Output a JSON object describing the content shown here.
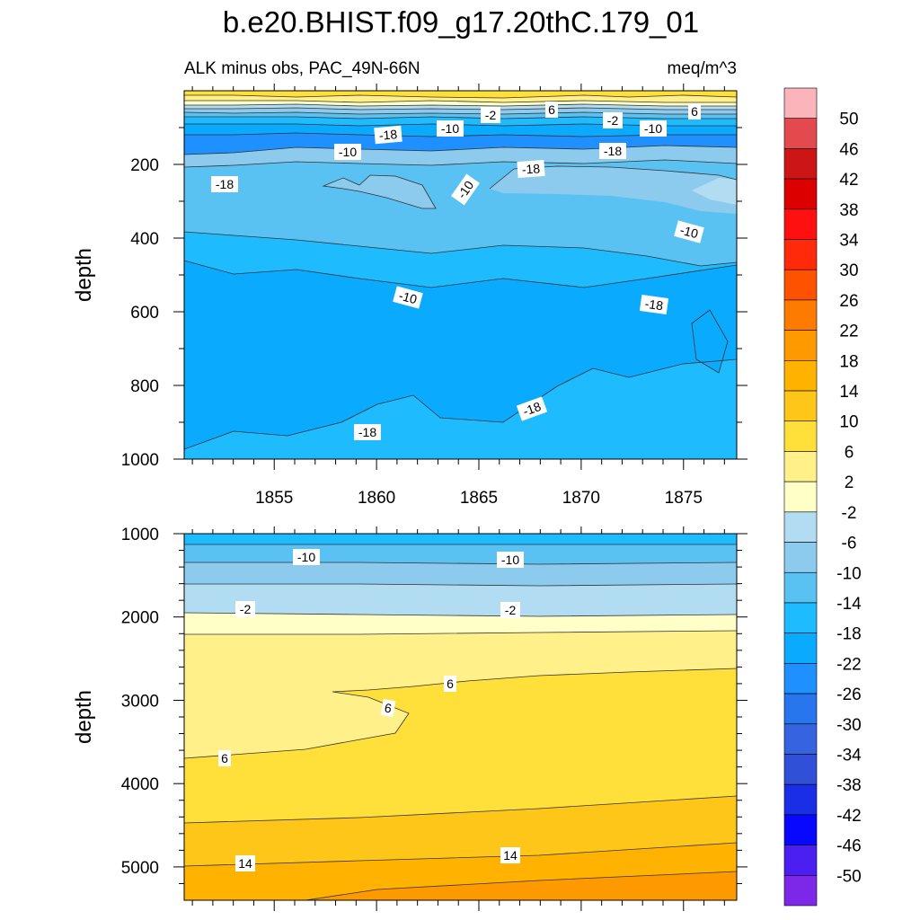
{
  "chart_data": {
    "type": "heatmap",
    "title": "b.e20.BHIST.f09_g17.20thC.179_01",
    "subtitle_left": "ALK minus obs, PAC_49N-66N",
    "subtitle_right": "meq/m^3",
    "ylabel": "depth",
    "colorbar": {
      "labels": [
        "50",
        "46",
        "42",
        "38",
        "34",
        "30",
        "26",
        "22",
        "18",
        "14",
        "10",
        "6",
        "2",
        "-2",
        "-6",
        "-10",
        "-14",
        "-18",
        "-22",
        "-26",
        "-30",
        "-34",
        "-38",
        "-42",
        "-46",
        "-50"
      ],
      "colors": [
        "#fbb4b9",
        "#e34a4f",
        "#cc1515",
        "#dd0000",
        "#ff1010",
        "#ff2a0a",
        "#ff5200",
        "#ff7a00",
        "#ff9900",
        "#ffb300",
        "#ffc61a",
        "#ffe03a",
        "#fff08a",
        "#ffffc8",
        "#b2dcf2",
        "#8ccaee",
        "#5ac2f2",
        "#1ebcff",
        "#0aaaff",
        "#1e90ff",
        "#2876ee",
        "#3664e0",
        "#3050d8",
        "#1a2ee6",
        "#0808ff",
        "#4b1ef2",
        "#7d28e8"
      ]
    },
    "panels": [
      {
        "name": "upper",
        "xlim": [
          1850.6,
          1877.6
        ],
        "xticks": [
          1855,
          1860,
          1865,
          1870,
          1875
        ],
        "ylim": [
          0,
          1000
        ],
        "yticks": [
          200,
          400,
          600,
          800,
          1000
        ],
        "contour_labels": [
          "-2",
          "6",
          "-2",
          "6",
          "-10",
          "-10",
          "-18",
          "-10",
          "-18",
          "-18",
          "-10",
          "-10",
          "-10",
          "-18",
          "-18",
          "-18",
          "-18"
        ]
      },
      {
        "name": "lower",
        "ylim": [
          1000,
          5400
        ],
        "yticks": [
          1000,
          2000,
          3000,
          4000,
          5000
        ],
        "contour_labels": [
          "-10",
          "-10",
          "-2",
          "-2",
          "6",
          "6",
          "6",
          "14",
          "14"
        ]
      }
    ]
  }
}
